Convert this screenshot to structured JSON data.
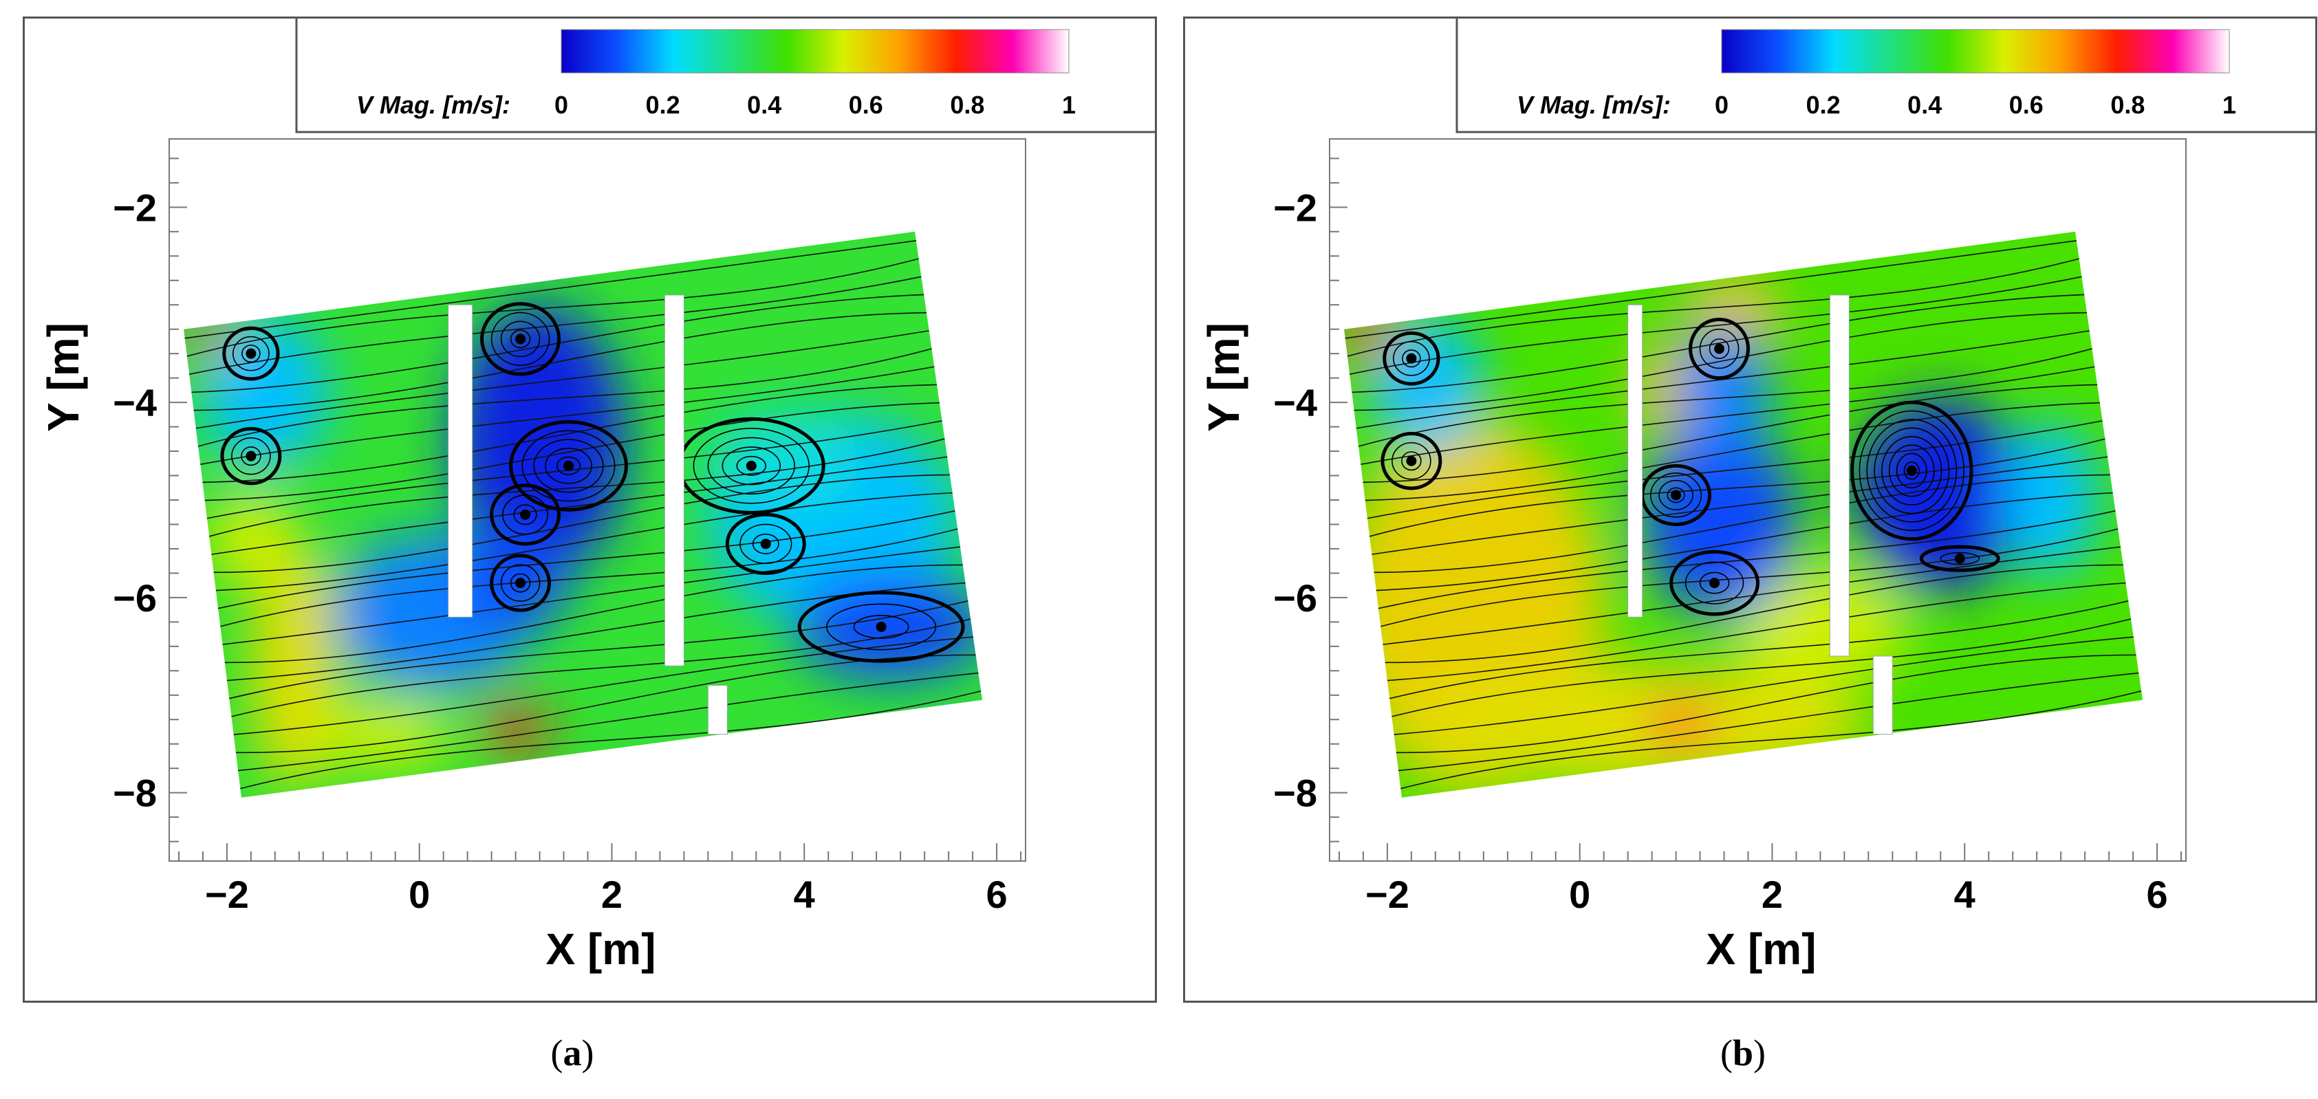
{
  "chart_data": [
    {
      "type": "heatmap",
      "panel": "a",
      "caption_label": "a",
      "xlabel": "X [m]",
      "ylabel": "Y [m]",
      "xlim": [
        -2.6,
        6.3
      ],
      "ylim": [
        -8.7,
        -1.3
      ],
      "xticks": [
        -2,
        0,
        2,
        4,
        6
      ],
      "yticks": [
        -2,
        -4,
        -6,
        -8
      ],
      "xtick_labels": [
        "−2",
        "0",
        "2",
        "4",
        "6"
      ],
      "ytick_labels": [
        "−2",
        "−4",
        "−6",
        "−8"
      ],
      "colorbar": {
        "label": "V Mag. [m/s]:",
        "range": [
          0,
          1
        ],
        "ticks": [
          0,
          0.2,
          0.4,
          0.6,
          0.8,
          1
        ],
        "tick_labels": [
          "0",
          "0.2",
          "0.4",
          "0.6",
          "0.8",
          "1"
        ],
        "colormap": [
          "#0a00c8",
          "#0a50ff",
          "#00dcff",
          "#20e080",
          "#40e000",
          "#d8f000",
          "#ffa000",
          "#ff1e00",
          "#ff00b4",
          "#ffffff"
        ]
      },
      "domain_corners": [
        [
          -2.45,
          -3.25
        ],
        [
          5.15,
          -2.25
        ],
        [
          5.85,
          -7.05
        ],
        [
          -1.85,
          -8.05
        ]
      ],
      "plates": [
        {
          "x": [
            0.3,
            0.55
          ],
          "y": [
            -3.0,
            -6.2
          ]
        },
        {
          "x": [
            2.55,
            2.75
          ],
          "y": [
            -2.9,
            -6.7
          ]
        },
        {
          "x": [
            3.0,
            3.2
          ],
          "y": [
            -6.9,
            -7.4
          ]
        }
      ],
      "speed_regions": [
        {
          "kind": "field",
          "value": 0.4
        },
        {
          "kind": "blob",
          "center": [
            0.15,
            -6.15
          ],
          "size": [
            1.05,
            0.8
          ],
          "value": 0.15
        },
        {
          "kind": "blob",
          "center": [
            -1.6,
            -3.9
          ],
          "size": [
            0.65,
            0.8
          ],
          "value": 0.2
        },
        {
          "kind": "blob",
          "center": [
            1.25,
            -4.4
          ],
          "size": [
            0.9,
            1.4
          ],
          "value": 0.05
        },
        {
          "kind": "blob",
          "center": [
            1.0,
            -5.8
          ],
          "size": [
            0.55,
            0.55
          ],
          "value": 0.1
        },
        {
          "kind": "blob",
          "center": [
            4.3,
            -5.2
          ],
          "size": [
            1.3,
            1.1
          ],
          "value": 0.2
        },
        {
          "kind": "blob",
          "center": [
            4.9,
            -6.3
          ],
          "size": [
            1.0,
            0.55
          ],
          "value": 0.1
        },
        {
          "kind": "blob",
          "center": [
            3.8,
            -4.6
          ],
          "size": [
            0.8,
            0.5
          ],
          "value": 0.25
        },
        {
          "kind": "blob",
          "center": [
            -1.3,
            -6.7
          ],
          "size": [
            0.45,
            1.3
          ],
          "value": 0.58
        },
        {
          "kind": "blob",
          "center": [
            -0.4,
            -7.4
          ],
          "size": [
            0.75,
            0.35
          ],
          "value": 0.55
        },
        {
          "kind": "blob",
          "center": [
            -1.75,
            -5.4
          ],
          "size": [
            0.45,
            0.5
          ],
          "value": 0.55
        },
        {
          "kind": "blob",
          "center": [
            1.0,
            -7.35
          ],
          "size": [
            0.35,
            0.22
          ],
          "value": 0.8
        },
        {
          "kind": "blob",
          "center": [
            -2.2,
            -3.3
          ],
          "size": [
            0.2,
            0.2
          ],
          "value": 0.8
        }
      ],
      "vortices": [
        {
          "center": [
            -1.75,
            -3.5
          ],
          "rx": 0.28,
          "ry": 0.26,
          "turns": 3
        },
        {
          "center": [
            -1.75,
            -4.55
          ],
          "rx": 0.3,
          "ry": 0.28,
          "turns": 3
        },
        {
          "center": [
            1.05,
            -3.35
          ],
          "rx": 0.4,
          "ry": 0.36,
          "turns": 4
        },
        {
          "center": [
            1.55,
            -4.65
          ],
          "rx": 0.6,
          "ry": 0.45,
          "turns": 5
        },
        {
          "center": [
            1.1,
            -5.15
          ],
          "rx": 0.35,
          "ry": 0.3,
          "turns": 3
        },
        {
          "center": [
            1.05,
            -5.85
          ],
          "rx": 0.3,
          "ry": 0.28,
          "turns": 3
        },
        {
          "center": [
            3.45,
            -4.65
          ],
          "rx": 0.75,
          "ry": 0.48,
          "turns": 5
        },
        {
          "center": [
            3.6,
            -5.45
          ],
          "rx": 0.4,
          "ry": 0.3,
          "turns": 3
        },
        {
          "center": [
            4.8,
            -6.3
          ],
          "rx": 0.85,
          "ry": 0.35,
          "turns": 3
        }
      ]
    },
    {
      "type": "heatmap",
      "panel": "b",
      "caption_label": "b",
      "xlabel": "X [m]",
      "ylabel": "Y [m]",
      "xlim": [
        -2.6,
        6.3
      ],
      "ylim": [
        -8.7,
        -1.3
      ],
      "xticks": [
        -2,
        0,
        2,
        4,
        6
      ],
      "yticks": [
        -2,
        -4,
        -6,
        -8
      ],
      "xtick_labels": [
        "−2",
        "0",
        "2",
        "4",
        "6"
      ],
      "ytick_labels": [
        "−2",
        "−4",
        "−6",
        "−8"
      ],
      "colorbar": {
        "label": "V Mag. [m/s]:",
        "range": [
          0,
          1
        ],
        "ticks": [
          0,
          0.2,
          0.4,
          0.6,
          0.8,
          1
        ],
        "tick_labels": [
          "0",
          "0.2",
          "0.4",
          "0.6",
          "0.8",
          "1"
        ],
        "colormap": [
          "#0a00c8",
          "#0a50ff",
          "#00dcff",
          "#20e080",
          "#40e000",
          "#d8f000",
          "#ffa000",
          "#ff1e00",
          "#ff00b4",
          "#ffffff"
        ]
      },
      "domain_corners": [
        [
          -2.45,
          -3.25
        ],
        [
          5.15,
          -2.25
        ],
        [
          5.85,
          -7.05
        ],
        [
          -1.85,
          -8.05
        ]
      ],
      "plates": [
        {
          "x": [
            0.5,
            0.65
          ],
          "y": [
            -3.0,
            -6.2
          ]
        },
        {
          "x": [
            2.6,
            2.8
          ],
          "y": [
            -2.9,
            -6.6
          ]
        },
        {
          "x": [
            3.05,
            3.25
          ],
          "y": [
            -6.6,
            -7.4
          ]
        }
      ],
      "speed_regions": [
        {
          "kind": "field",
          "value": 0.45
        },
        {
          "kind": "blob",
          "center": [
            -1.1,
            -6.1
          ],
          "size": [
            1.35,
            1.9
          ],
          "value": 0.6
        },
        {
          "kind": "blob",
          "center": [
            0.6,
            -7.3
          ],
          "size": [
            2.4,
            0.6
          ],
          "value": 0.58
        },
        {
          "kind": "blob",
          "center": [
            2.5,
            -6.3
          ],
          "size": [
            0.9,
            0.6
          ],
          "value": 0.55
        },
        {
          "kind": "blob",
          "center": [
            1.6,
            -3.05
          ],
          "size": [
            0.5,
            0.35
          ],
          "value": 0.62
        },
        {
          "kind": "blob",
          "center": [
            0.85,
            -3.85
          ],
          "size": [
            0.25,
            0.55
          ],
          "value": 0.62
        },
        {
          "kind": "blob",
          "center": [
            1.45,
            -5.2
          ],
          "size": [
            0.8,
            1.0
          ],
          "value": 0.1
        },
        {
          "kind": "blob",
          "center": [
            1.5,
            -3.9
          ],
          "size": [
            0.5,
            0.7
          ],
          "value": 0.15
        },
        {
          "kind": "blob",
          "center": [
            3.75,
            -4.95
          ],
          "size": [
            0.9,
            1.0
          ],
          "value": 0.05
        },
        {
          "kind": "blob",
          "center": [
            4.9,
            -5.0
          ],
          "size": [
            0.5,
            0.8
          ],
          "value": 0.2
        },
        {
          "kind": "blob",
          "center": [
            -1.6,
            -3.8
          ],
          "size": [
            0.6,
            0.7
          ],
          "value": 0.2
        },
        {
          "kind": "blob",
          "center": [
            1.05,
            -7.3
          ],
          "size": [
            0.3,
            0.22
          ],
          "value": 0.8
        },
        {
          "kind": "blob",
          "center": [
            -2.2,
            -3.3
          ],
          "size": [
            0.25,
            0.25
          ],
          "value": 0.8
        }
      ],
      "vortices": [
        {
          "center": [
            -1.75,
            -3.55
          ],
          "rx": 0.28,
          "ry": 0.26,
          "turns": 3
        },
        {
          "center": [
            -1.75,
            -4.6
          ],
          "rx": 0.3,
          "ry": 0.28,
          "turns": 3
        },
        {
          "center": [
            1.45,
            -3.45
          ],
          "rx": 0.3,
          "ry": 0.3,
          "turns": 3
        },
        {
          "center": [
            1.0,
            -4.95
          ],
          "rx": 0.35,
          "ry": 0.3,
          "turns": 4
        },
        {
          "center": [
            1.4,
            -5.85
          ],
          "rx": 0.45,
          "ry": 0.32,
          "turns": 3
        },
        {
          "center": [
            3.45,
            -4.7
          ],
          "rx": 0.62,
          "ry": 0.7,
          "turns": 8
        },
        {
          "center": [
            3.95,
            -5.6
          ],
          "rx": 0.4,
          "ry": 0.12,
          "turns": 2
        }
      ]
    }
  ]
}
